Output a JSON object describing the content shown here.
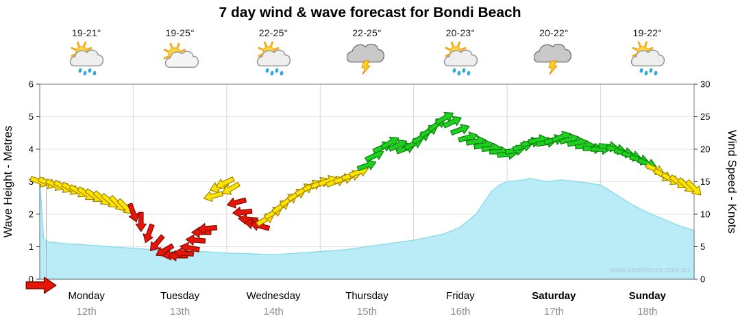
{
  "title": "7 day wind & wave forecast for Bondi Beach",
  "watermark": "www.seabreeze.com.au",
  "day_headers": [
    {
      "temp": "19-21°",
      "icon": "sun-cloud-rain"
    },
    {
      "temp": "19-25°",
      "icon": "sun-cloud"
    },
    {
      "temp": "22-25°",
      "icon": "sun-cloud-rain"
    },
    {
      "temp": "22-25°",
      "icon": "storm"
    },
    {
      "temp": "20-23°",
      "icon": "sun-cloud-rain"
    },
    {
      "temp": "20-22°",
      "icon": "storm"
    },
    {
      "temp": "19-22°",
      "icon": "sun-cloud-rain"
    }
  ],
  "chart_data": {
    "type": "area+wind-arrows",
    "title": "7 day wind & wave forecast for Bondi Beach",
    "left_axis": {
      "label": "Wave Height - Metres",
      "min": 0,
      "max": 6,
      "ticks": [
        0,
        1,
        2,
        3,
        4,
        5,
        6
      ]
    },
    "right_axis": {
      "label": "Wind Speed - Knots",
      "min": 0,
      "max": 30,
      "ticks": [
        0,
        5,
        10,
        15,
        20,
        25,
        30
      ]
    },
    "x_axis": {
      "unit": "hours",
      "span_hours": 168,
      "hours_per_day": 24,
      "days": [
        {
          "name": "Monday",
          "date": "12th",
          "bold": false
        },
        {
          "name": "Tuesday",
          "date": "13th",
          "bold": false
        },
        {
          "name": "Wednesday",
          "date": "14th",
          "bold": false
        },
        {
          "name": "Thursday",
          "date": "15th",
          "bold": false
        },
        {
          "name": "Friday",
          "date": "16th",
          "bold": false
        },
        {
          "name": "Saturday",
          "date": "17th",
          "bold": true
        },
        {
          "name": "Sunday",
          "date": "18th",
          "bold": true
        }
      ]
    },
    "wave_height_m": {
      "x_hours": [
        0,
        1,
        2,
        6,
        12,
        18,
        24,
        30,
        36,
        42,
        48,
        54,
        60,
        66,
        72,
        78,
        84,
        90,
        96,
        100,
        104,
        108,
        112,
        116,
        118,
        120,
        124,
        126,
        130,
        134,
        138,
        144,
        148,
        152,
        156,
        160,
        164,
        168
      ],
      "values": [
        3.0,
        1.25,
        1.15,
        1.1,
        1.05,
        1.0,
        0.95,
        0.9,
        0.85,
        0.85,
        0.8,
        0.78,
        0.75,
        0.8,
        0.85,
        0.9,
        1.0,
        1.1,
        1.2,
        1.3,
        1.4,
        1.6,
        2.0,
        2.7,
        2.9,
        3.0,
        3.05,
        3.1,
        3.0,
        3.05,
        3.0,
        2.9,
        2.6,
        2.3,
        2.05,
        1.85,
        1.65,
        1.5
      ]
    },
    "wind_arrows": {
      "columns": [
        "hour",
        "knots",
        "direction_deg",
        "color"
      ],
      "points": [
        [
          0,
          15,
          20,
          "y"
        ],
        [
          2,
          14.8,
          25,
          "y"
        ],
        [
          4,
          14.5,
          25,
          "y"
        ],
        [
          6,
          14.2,
          30,
          "y"
        ],
        [
          8,
          13.9,
          30,
          "y"
        ],
        [
          10,
          13.5,
          30,
          "y"
        ],
        [
          12,
          13.1,
          35,
          "y"
        ],
        [
          14,
          12.8,
          35,
          "y"
        ],
        [
          16,
          12.4,
          40,
          "y"
        ],
        [
          18,
          12,
          40,
          "y"
        ],
        [
          20,
          11.6,
          45,
          "y"
        ],
        [
          22,
          11.1,
          45,
          "y"
        ],
        [
          24,
          10.2,
          70,
          "r"
        ],
        [
          26,
          8.8,
          90,
          "r"
        ],
        [
          28,
          7,
          110,
          "r"
        ],
        [
          30,
          5.5,
          130,
          "r"
        ],
        [
          32,
          4.4,
          150,
          "r"
        ],
        [
          34,
          3.8,
          170,
          "r"
        ],
        [
          35.5,
          3.6,
          180,
          "r"
        ],
        [
          37,
          4,
          185,
          "r"
        ],
        [
          38.5,
          4.8,
          190,
          "r"
        ],
        [
          40,
          6,
          185,
          "r"
        ],
        [
          41.5,
          7.2,
          180,
          "r"
        ],
        [
          43,
          7.8,
          175,
          "r"
        ],
        [
          44.5,
          12.8,
          165,
          "y"
        ],
        [
          46,
          14.2,
          160,
          "y"
        ],
        [
          47.5,
          14.8,
          155,
          "y"
        ],
        [
          49,
          13.9,
          150,
          "y"
        ],
        [
          50.5,
          11.8,
          165,
          "r"
        ],
        [
          52,
          10.3,
          175,
          "r"
        ],
        [
          53.5,
          9.2,
          185,
          "r"
        ],
        [
          55,
          8.5,
          190,
          "r"
        ],
        [
          56.5,
          8.2,
          195,
          "r"
        ],
        [
          58,
          9.2,
          330,
          "y"
        ],
        [
          60,
          10.2,
          330,
          "y"
        ],
        [
          62,
          11.2,
          325,
          "y"
        ],
        [
          64,
          12.2,
          325,
          "y"
        ],
        [
          66,
          13,
          330,
          "y"
        ],
        [
          68,
          13.8,
          330,
          "y"
        ],
        [
          70,
          14.4,
          335,
          "y"
        ],
        [
          72,
          14.8,
          335,
          "y"
        ],
        [
          74,
          15.1,
          340,
          "y"
        ],
        [
          76,
          15,
          340,
          "y"
        ],
        [
          78,
          15.4,
          345,
          "y"
        ],
        [
          80,
          15.9,
          345,
          "y"
        ],
        [
          82,
          16.5,
          340,
          "y"
        ],
        [
          84,
          17.5,
          340,
          "g"
        ],
        [
          86,
          19,
          335,
          "g"
        ],
        [
          88,
          20.3,
          335,
          "g"
        ],
        [
          90,
          21,
          330,
          "g"
        ],
        [
          92,
          20.6,
          335,
          "g"
        ],
        [
          94,
          20.1,
          340,
          "g"
        ],
        [
          96,
          20.8,
          335,
          "g"
        ],
        [
          98,
          21.8,
          330,
          "g"
        ],
        [
          100,
          22.8,
          330,
          "g"
        ],
        [
          102,
          23.8,
          325,
          "g"
        ],
        [
          104,
          24.8,
          330,
          "g"
        ],
        [
          106,
          24.2,
          335,
          "g"
        ],
        [
          108,
          23,
          340,
          "g"
        ],
        [
          110,
          21.8,
          345,
          "g"
        ],
        [
          112,
          21.2,
          350,
          "g"
        ],
        [
          114,
          20.6,
          350,
          "g"
        ],
        [
          116,
          20.1,
          355,
          "g"
        ],
        [
          118,
          19.6,
          0,
          "g"
        ],
        [
          120,
          19.2,
          355,
          "g"
        ],
        [
          122,
          19.8,
          350,
          "g"
        ],
        [
          124,
          20.4,
          345,
          "g"
        ],
        [
          126,
          21,
          345,
          "g"
        ],
        [
          128,
          21.4,
          350,
          "g"
        ],
        [
          130,
          21,
          350,
          "g"
        ],
        [
          132,
          21.4,
          345,
          "g"
        ],
        [
          134,
          21.9,
          340,
          "g"
        ],
        [
          136,
          21.5,
          345,
          "g"
        ],
        [
          138,
          21,
          350,
          "g"
        ],
        [
          140,
          20.5,
          355,
          "g"
        ],
        [
          142,
          20.1,
          0,
          "g"
        ],
        [
          144,
          20,
          0,
          "g"
        ],
        [
          146,
          20.4,
          5,
          "g"
        ],
        [
          148,
          20,
          10,
          "g"
        ],
        [
          150,
          19.5,
          10,
          "g"
        ],
        [
          152,
          19,
          15,
          "g"
        ],
        [
          154,
          18.4,
          15,
          "g"
        ],
        [
          156,
          17.8,
          20,
          "g"
        ],
        [
          158,
          16.9,
          25,
          "y"
        ],
        [
          160,
          16,
          30,
          "y"
        ],
        [
          162,
          15.4,
          30,
          "y"
        ],
        [
          164,
          14.9,
          35,
          "y"
        ],
        [
          166,
          14.4,
          40,
          "y"
        ],
        [
          168,
          14,
          45,
          "y"
        ]
      ]
    },
    "arrow_colors": {
      "y": "#ffe400",
      "r": "#e81309",
      "g": "#1fd11f"
    },
    "wave_fill": "#b9ecf7",
    "wave_edge": "#8fdcec",
    "now_line_hour": 1.7,
    "now_arrow": {
      "color": "r",
      "direction_deg": 0,
      "knots": 0
    }
  }
}
